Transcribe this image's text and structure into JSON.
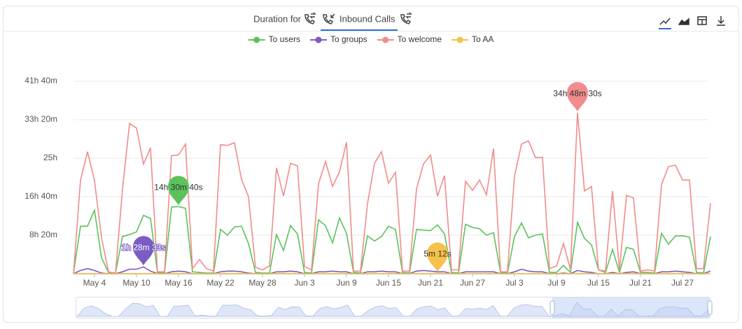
{
  "header": {
    "label": "Duration for",
    "tab": "Inbound Calls"
  },
  "chart_data": {
    "type": "line",
    "categories": [
      null,
      null,
      null,
      "May 4",
      null,
      null,
      null,
      null,
      null,
      "May 10",
      null,
      null,
      null,
      null,
      null,
      "May 16",
      null,
      null,
      null,
      null,
      null,
      "May 22",
      null,
      null,
      null,
      null,
      null,
      "May 28",
      null,
      null,
      null,
      null,
      null,
      "Jun 3",
      null,
      null,
      null,
      null,
      null,
      "Jun 9",
      null,
      null,
      null,
      null,
      null,
      "Jun 15",
      null,
      null,
      null,
      null,
      null,
      "Jun 21",
      null,
      null,
      null,
      null,
      null,
      "Jun 27",
      null,
      null,
      null,
      null,
      null,
      "Jul 3",
      null,
      null,
      null,
      null,
      null,
      "Jul 9",
      null,
      null,
      null,
      null,
      null,
      "Jul 15",
      null,
      null,
      null,
      null,
      null,
      "Jul 21",
      null,
      null,
      null,
      null,
      null,
      "Jul 27",
      null,
      null,
      null,
      null
    ],
    "ylim": [
      0,
      150000
    ],
    "yticks": [
      {
        "value": 30000,
        "label": "8h 20m"
      },
      {
        "value": 60000,
        "label": "16h 40m"
      },
      {
        "value": 90000,
        "label": "25h"
      },
      {
        "value": 120000,
        "label": "33h 20m"
      },
      {
        "value": 150000,
        "label": "41h 40m"
      }
    ],
    "grid": true,
    "legend": "top",
    "series": [
      {
        "name": "To users",
        "color": "#5cc25c",
        "max_label": "14h 30m 40s",
        "values": [
          500,
          37000,
          37000,
          49500,
          12500,
          1000,
          500,
          29000,
          30500,
          32500,
          45500,
          43000,
          1000,
          500,
          52000,
          52240,
          51000,
          1500,
          1000,
          500,
          500,
          34500,
          30000,
          36500,
          37000,
          23500,
          1000,
          500,
          500,
          30500,
          18000,
          37500,
          31000,
          1000,
          500,
          42000,
          37500,
          24000,
          43500,
          31500,
          1000,
          500,
          29500,
          25500,
          29000,
          37000,
          34500,
          1000,
          500,
          34500,
          34000,
          33500,
          38000,
          31000,
          1000,
          500,
          38500,
          36000,
          35000,
          30000,
          32000,
          1000,
          500,
          29000,
          39500,
          28000,
          30000,
          31000,
          1000,
          1000,
          6500,
          1000,
          40000,
          27500,
          22500,
          3000,
          1000,
          19000,
          1000,
          20500,
          19000,
          1000,
          1000,
          500,
          31500,
          23000,
          29500,
          29500,
          28500,
          1000,
          500,
          29000
        ]
      },
      {
        "name": "To groups",
        "color": "#7b5bc4",
        "max_label": "1h 28m 33s",
        "values": [
          0,
          2500,
          4000,
          2500,
          500,
          0,
          0,
          1500,
          3500,
          3500,
          5313,
          2000,
          0,
          0,
          1500,
          2000,
          1500,
          0,
          0,
          0,
          0,
          1500,
          2000,
          2000,
          1500,
          500,
          0,
          0,
          0,
          1500,
          1500,
          2000,
          1500,
          0,
          0,
          1500,
          1500,
          2000,
          1500,
          1500,
          0,
          0,
          1500,
          1500,
          2000,
          1500,
          1500,
          0,
          0,
          2000,
          2500,
          2000,
          1500,
          1500,
          0,
          0,
          1500,
          1500,
          1500,
          1500,
          1500,
          0,
          0,
          1500,
          3500,
          2000,
          1500,
          1500,
          0,
          0,
          500,
          0,
          2500,
          1500,
          1000,
          0,
          0,
          1000,
          0,
          1000,
          1500,
          0,
          0,
          0,
          1500,
          1500,
          2000,
          1500,
          1000,
          0,
          0,
          2000
        ]
      },
      {
        "name": "To welcome",
        "color": "#f28b8b",
        "max_label": "34h 48m 30s",
        "values": [
          0,
          73000,
          95000,
          72500,
          28000,
          1500,
          500,
          66000,
          117000,
          113500,
          85500,
          98000,
          1500,
          1500,
          92000,
          92500,
          101000,
          4000,
          11000,
          4000,
          2000,
          100500,
          100000,
          102000,
          73500,
          60000,
          5000,
          3000,
          6000,
          82500,
          60500,
          86000,
          84000,
          5500,
          3000,
          70000,
          87500,
          68000,
          79500,
          102500,
          2000,
          2000,
          54500,
          86000,
          95000,
          70500,
          79000,
          2000,
          2000,
          66000,
          85500,
          92500,
          60500,
          76500,
          3000,
          3000,
          72000,
          65000,
          73000,
          61500,
          97500,
          1500,
          1500,
          76000,
          101000,
          103500,
          90500,
          90500,
          4000,
          6000,
          23500,
          3000,
          125310,
          64500,
          68000,
          3000,
          2000,
          64500,
          3000,
          61000,
          59000,
          2000,
          3000,
          2000,
          69500,
          83500,
          84500,
          73000,
          73000,
          4000,
          4000,
          55000
        ]
      },
      {
        "name": "To AA",
        "color": "#f5c24c",
        "max_label": "5m 12s",
        "values": [
          0,
          100,
          100,
          100,
          0,
          0,
          0,
          100,
          100,
          100,
          100,
          100,
          0,
          0,
          100,
          100,
          100,
          0,
          0,
          0,
          0,
          100,
          100,
          100,
          100,
          0,
          0,
          0,
          0,
          100,
          100,
          100,
          100,
          0,
          0,
          100,
          100,
          100,
          100,
          100,
          0,
          0,
          100,
          100,
          100,
          100,
          100,
          0,
          0,
          100,
          100,
          100,
          312,
          100,
          0,
          0,
          100,
          100,
          100,
          100,
          100,
          0,
          0,
          100,
          100,
          100,
          100,
          100,
          0,
          0,
          0,
          0,
          100,
          100,
          100,
          0,
          0,
          100,
          0,
          100,
          100,
          0,
          0,
          0,
          100,
          100,
          100,
          100,
          100,
          0,
          0,
          100
        ]
      }
    ]
  }
}
